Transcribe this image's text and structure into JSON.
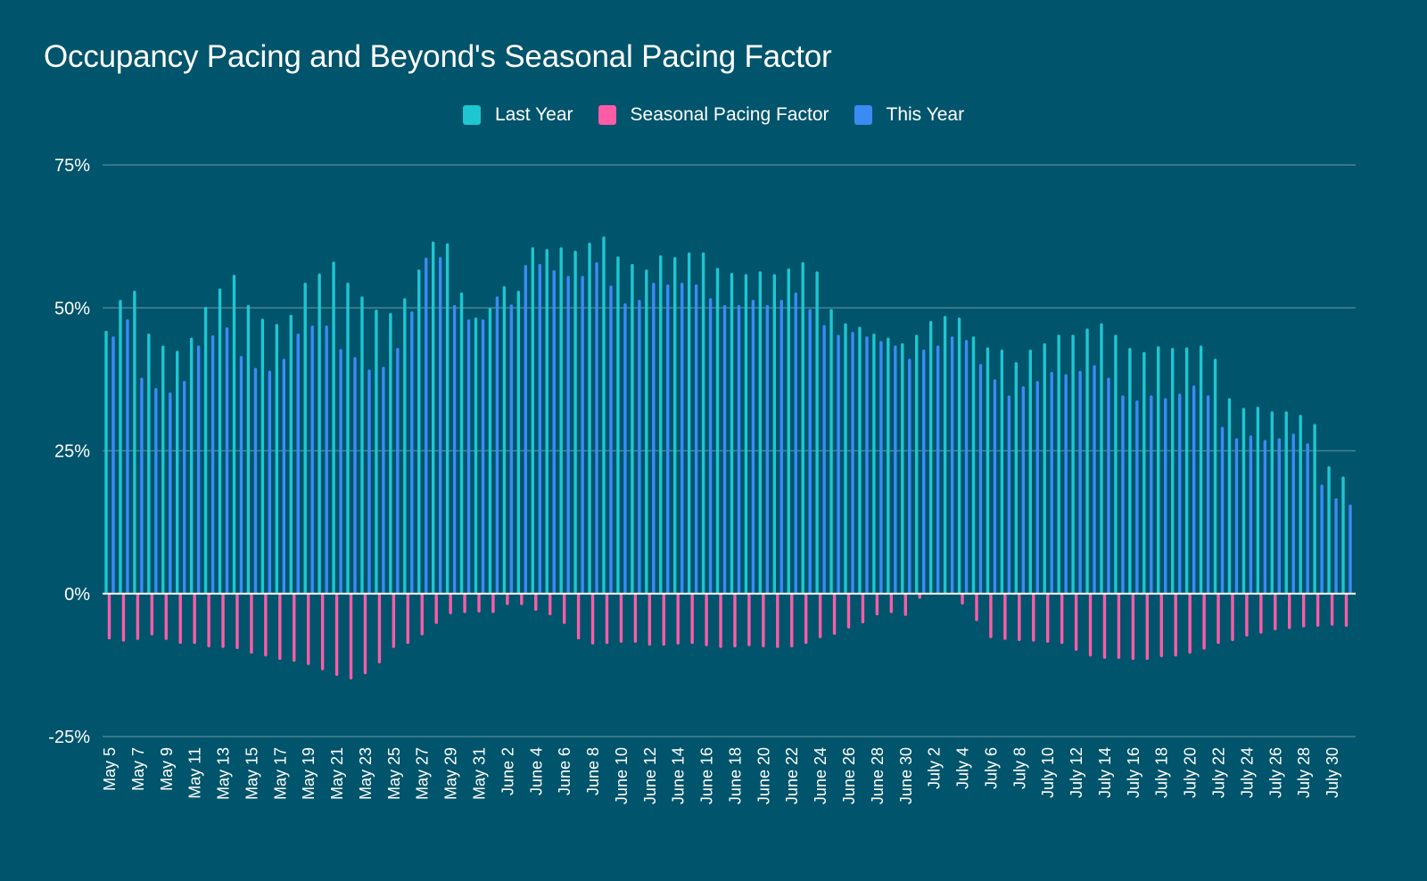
{
  "chart_data": {
    "type": "bar",
    "title": "Occupancy Pacing and Beyond's Seasonal Pacing Factor",
    "xlabel": "",
    "ylabel": "",
    "ylim": [
      -25,
      75
    ],
    "yticks": [
      "75%",
      "50%",
      "25%",
      "0%",
      "-25%"
    ],
    "ytick_values": [
      75,
      50,
      25,
      0,
      -25
    ],
    "grid": true,
    "legend_position": "top-center",
    "legend": [
      "Last Year",
      "Seasonal Pacing Factor",
      "This Year"
    ],
    "colors": {
      "Last Year": "#1ec6d1",
      "Seasonal Pacing Factor": "#ff5ca8",
      "This Year": "#3b8bf5",
      "background": "#00546b",
      "gridline": "#4a8494",
      "zero_line": "#ffffff"
    },
    "categories": [
      "May 5",
      "May 6",
      "May 7",
      "May 8",
      "May 9",
      "May 10",
      "May 11",
      "May 12",
      "May 13",
      "May 14",
      "May 15",
      "May 16",
      "May 17",
      "May 18",
      "May 19",
      "May 20",
      "May 21",
      "May 22",
      "May 23",
      "May 24",
      "May 25",
      "May 26",
      "May 27",
      "May 28",
      "May 29",
      "May 30",
      "May 31",
      "June 1",
      "June 2",
      "June 3",
      "June 4",
      "June 5",
      "June 6",
      "June 7",
      "June 8",
      "June 9",
      "June 10",
      "June 11",
      "June 12",
      "June 13",
      "June 14",
      "June 15",
      "June 16",
      "June 17",
      "June 18",
      "June 19",
      "June 20",
      "June 21",
      "June 22",
      "June 23",
      "June 24",
      "June 25",
      "June 26",
      "June 27",
      "June 28",
      "June 29",
      "June 30",
      "July 1",
      "July 2",
      "July 3",
      "July 4",
      "July 5",
      "July 6",
      "July 7",
      "July 8",
      "July 9",
      "July 10",
      "July 11",
      "July 12",
      "July 13",
      "July 14",
      "July 15",
      "July 16",
      "July 17",
      "July 18",
      "July 19",
      "July 20",
      "July 21",
      "July 22",
      "July 23",
      "July 24",
      "July 25",
      "July 26",
      "July 27",
      "July 28",
      "July 29",
      "July 30",
      "July 31"
    ],
    "xtick_labels_shown_every": 2,
    "series": [
      {
        "name": "Last Year",
        "values": [
          46,
          51.4,
          53,
          45.5,
          43.4,
          42.5,
          44.8,
          50.2,
          53.4,
          55.8,
          50.5,
          48.1,
          47.2,
          48.8,
          54.4,
          56,
          58.1,
          54.4,
          52,
          49.7,
          49.1,
          51.7,
          56.7,
          61.6,
          61.3,
          52.7,
          48.3,
          50,
          53.8,
          53,
          60.6,
          60.3,
          60.6,
          60,
          61.4,
          62.5,
          59,
          57.7,
          56.7,
          59.2,
          58.9,
          59.7,
          59.7,
          57,
          56.1,
          55.9,
          56.4,
          55.9,
          56.9,
          58,
          56.4,
          49.8,
          47.3,
          46.7,
          45.5,
          44.8,
          43.8,
          45.3,
          47.7,
          48.6,
          48.3,
          45,
          43.1,
          42.7,
          40.5,
          42.7,
          43.8,
          45.3,
          45.3,
          46.4,
          47.3,
          45.3,
          43,
          42.3,
          43.3,
          43,
          43.1,
          43.4,
          41.1,
          34.2,
          32.5,
          32.7,
          31.9,
          31.9,
          31.3,
          29.7,
          22.3,
          20.5
        ]
      },
      {
        "name": "Seasonal Pacing Factor",
        "values": [
          -8,
          -8.4,
          -8.1,
          -7.3,
          -8.1,
          -8.8,
          -8.8,
          -9.4,
          -9.5,
          -9.7,
          -10.5,
          -11,
          -11.6,
          -11.9,
          -12.5,
          -13.4,
          -14.4,
          -15,
          -14.1,
          -12.2,
          -9.5,
          -8.8,
          -7.3,
          -5.3,
          -3.6,
          -3.4,
          -3.3,
          -3.4,
          -2,
          -2,
          -3,
          -3.8,
          -5.3,
          -8,
          -8.9,
          -8.8,
          -8.6,
          -8.6,
          -9.1,
          -9.1,
          -8.9,
          -8.8,
          -9.2,
          -9.5,
          -9.4,
          -9.2,
          -9.4,
          -9.5,
          -9.4,
          -8.8,
          -7.8,
          -7.2,
          -6.1,
          -5.2,
          -3.8,
          -3.4,
          -3.9,
          -0.9,
          0,
          0,
          -1.9,
          -4.8,
          -7.8,
          -8.1,
          -8.3,
          -8.4,
          -8.6,
          -8.8,
          -10,
          -11,
          -11.4,
          -11.4,
          -11.6,
          -11.6,
          -11.1,
          -11,
          -10.5,
          -9.8,
          -8.8,
          -8.3,
          -7.5,
          -7,
          -6.4,
          -6.2,
          -5.9,
          -5.8,
          -5.6,
          -5.8
        ]
      },
      {
        "name": "This Year",
        "values": [
          45,
          48,
          37.8,
          36,
          35.2,
          37.2,
          43.4,
          45.2,
          46.6,
          41.6,
          39.5,
          39,
          41.1,
          45.5,
          46.9,
          46.9,
          42.8,
          41.4,
          39.2,
          39.7,
          43,
          49.4,
          58.8,
          58.9,
          50.5,
          48,
          48,
          52,
          50.6,
          57.5,
          57.7,
          56.6,
          55.6,
          55.6,
          58,
          53.9,
          50.8,
          51.4,
          54.4,
          54.1,
          54.4,
          54.1,
          51.7,
          50.5,
          50.5,
          51.4,
          50.5,
          51.4,
          52.7,
          49.8,
          47,
          45.3,
          45.8,
          45,
          44.2,
          43.4,
          41.1,
          42.7,
          43.4,
          45,
          44.4,
          40.2,
          37.5,
          34.7,
          36.3,
          37.2,
          38.8,
          38.4,
          39,
          40,
          37.8,
          34.7,
          33.8,
          34.7,
          34.2,
          35,
          36.4,
          34.7,
          29.2,
          27.2,
          27.7,
          26.9,
          27.2,
          28,
          26.3,
          19.1,
          16.7,
          15.6
        ]
      }
    ]
  }
}
